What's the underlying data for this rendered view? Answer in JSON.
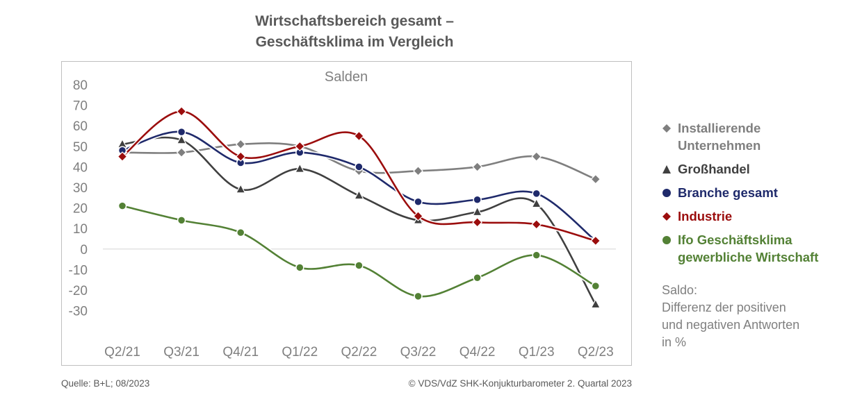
{
  "title_line1": "Wirtschaftsbereich gesamt –",
  "title_line2": "Geschäftsklima im Vergleich",
  "chart_data": {
    "type": "line",
    "title": "Wirtschaftsbereich gesamt – Geschäftsklima im Vergleich",
    "subtitle": "Salden",
    "categories": [
      "Q2/21",
      "Q3/21",
      "Q4/21",
      "Q1/22",
      "Q2/22",
      "Q3/22",
      "Q4/22",
      "Q1/23",
      "Q2/23"
    ],
    "y_ticks": [
      "80",
      "70",
      "60",
      "50",
      "40",
      "30",
      "20",
      "10",
      "0",
      "-10",
      "-20",
      "-30"
    ],
    "ylim": [
      -30,
      80
    ],
    "grid": false,
    "legend_position": "right",
    "series": [
      {
        "name_line1": "Installierende",
        "name_line2": "Unternehmen",
        "name": "Installierende Unternehmen",
        "marker": "diamond",
        "color": "#7f7f7f",
        "values": [
          47,
          47,
          51,
          50,
          38,
          38,
          40,
          45,
          34
        ]
      },
      {
        "name": "Großhandel",
        "marker": "triangle",
        "color": "#404040",
        "values": [
          51,
          53,
          29,
          39,
          26,
          14,
          18,
          22,
          -27
        ]
      },
      {
        "name": "Branche gesamt",
        "marker": "circle",
        "color": "#1f2a6b",
        "values": [
          48,
          57,
          42,
          47,
          40,
          23,
          24,
          27,
          4
        ]
      },
      {
        "name": "Industrie",
        "marker": "diamond",
        "color": "#9b0d0d",
        "values": [
          45,
          67,
          45,
          50,
          55,
          16,
          13,
          12,
          4
        ]
      },
      {
        "name_line1": "Ifo Geschäftsklima",
        "name_line2": "gewerbliche Wirtschaft",
        "name": "Ifo Geschäftsklima gewerbliche Wirtschaft",
        "marker": "circle",
        "color": "#538135",
        "values": [
          21,
          14,
          8,
          -9,
          -8,
          -23,
          -14,
          -3,
          -18
        ]
      }
    ]
  },
  "note": {
    "line1": "Saldo:",
    "line2": "Differenz der positiven",
    "line3": "und negativen Antworten",
    "line4": "in %"
  },
  "footer": {
    "source": "Quelle: B+L; 08/2023",
    "copyright": "© VDS/VdZ SHK-Konjukturbarometer 2. Quartal 2023"
  }
}
